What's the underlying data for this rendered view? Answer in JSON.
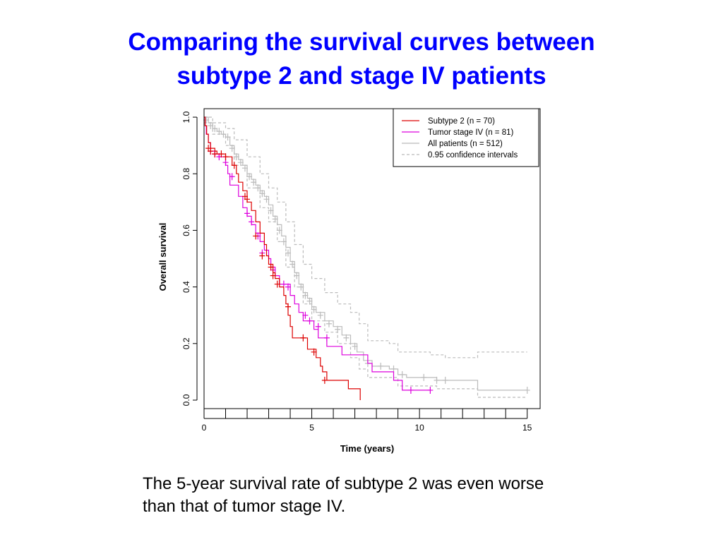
{
  "slide": {
    "title_lines": [
      "Comparing the survival curves between",
      "subtype 2 and stage IV patients"
    ],
    "caption_lines": [
      "The 5-year survival rate of subtype 2 was even worse",
      "than that of tumor stage IV."
    ]
  },
  "chart_data": {
    "type": "line",
    "subtype": "kaplan-meier step",
    "xlabel": "Time (years)",
    "ylabel": "Overall survival",
    "xlim": [
      0,
      15.6
    ],
    "ylim": [
      -0.03,
      1.03
    ],
    "x_ticks": [
      0,
      5,
      10,
      15
    ],
    "x_minor_ticks": [
      1,
      2,
      3,
      4,
      6,
      7,
      8,
      9,
      11,
      12,
      13,
      14
    ],
    "y_ticks": [
      0.0,
      0.2,
      0.4,
      0.6,
      0.8,
      1.0
    ],
    "y_tick_labels": [
      "0.0",
      "0.2",
      "0.4",
      "0.6",
      "0.8",
      "1.0"
    ],
    "grid": false,
    "legend_position": "top-right",
    "series": [
      {
        "name": "Subtype 2 (n = 70)",
        "color": "#dd0000",
        "step": [
          [
            0,
            1.0
          ],
          [
            0.05,
            0.97
          ],
          [
            0.12,
            0.94
          ],
          [
            0.2,
            0.91
          ],
          [
            0.3,
            0.89
          ],
          [
            0.5,
            0.88
          ],
          [
            0.6,
            0.87
          ],
          [
            1.0,
            0.86
          ],
          [
            1.3,
            0.83
          ],
          [
            1.5,
            0.8
          ],
          [
            1.6,
            0.77
          ],
          [
            1.8,
            0.74
          ],
          [
            2.0,
            0.7
          ],
          [
            2.2,
            0.67
          ],
          [
            2.4,
            0.63
          ],
          [
            2.6,
            0.59
          ],
          [
            2.8,
            0.55
          ],
          [
            2.9,
            0.51
          ],
          [
            3.0,
            0.48
          ],
          [
            3.2,
            0.45
          ],
          [
            3.3,
            0.43
          ],
          [
            3.5,
            0.4
          ],
          [
            3.7,
            0.37
          ],
          [
            3.8,
            0.34
          ],
          [
            3.9,
            0.3
          ],
          [
            4.0,
            0.26
          ],
          [
            4.1,
            0.22
          ],
          [
            4.8,
            0.18
          ],
          [
            5.2,
            0.15
          ],
          [
            5.4,
            0.12
          ],
          [
            5.5,
            0.1
          ],
          [
            5.7,
            0.07
          ],
          [
            6.7,
            0.04
          ],
          [
            7.25,
            0.0
          ]
        ],
        "censored": [
          [
            0.2,
            0.89
          ],
          [
            0.3,
            0.88
          ],
          [
            0.5,
            0.87
          ],
          [
            0.8,
            0.87
          ],
          [
            1.0,
            0.86
          ],
          [
            1.4,
            0.83
          ],
          [
            1.9,
            0.72
          ],
          [
            2.0,
            0.71
          ],
          [
            2.4,
            0.58
          ],
          [
            2.7,
            0.51
          ],
          [
            3.1,
            0.47
          ],
          [
            3.2,
            0.44
          ],
          [
            3.4,
            0.41
          ],
          [
            3.9,
            0.33
          ],
          [
            4.6,
            0.22
          ],
          [
            5.1,
            0.17
          ],
          [
            5.6,
            0.07
          ]
        ]
      },
      {
        "name": "Tumor stage IV (n = 81)",
        "color": "#dd00dd",
        "step": [
          [
            0,
            1.0
          ],
          [
            0.05,
            0.97
          ],
          [
            0.1,
            0.94
          ],
          [
            0.2,
            0.91
          ],
          [
            0.3,
            0.88
          ],
          [
            0.5,
            0.87
          ],
          [
            0.7,
            0.86
          ],
          [
            1.0,
            0.83
          ],
          [
            1.1,
            0.8
          ],
          [
            1.2,
            0.76
          ],
          [
            1.6,
            0.72
          ],
          [
            1.8,
            0.68
          ],
          [
            2.0,
            0.65
          ],
          [
            2.2,
            0.62
          ],
          [
            2.4,
            0.59
          ],
          [
            2.6,
            0.56
          ],
          [
            2.8,
            0.53
          ],
          [
            3.0,
            0.5
          ],
          [
            3.1,
            0.47
          ],
          [
            3.3,
            0.44
          ],
          [
            3.5,
            0.41
          ],
          [
            4.0,
            0.37
          ],
          [
            4.2,
            0.34
          ],
          [
            4.4,
            0.31
          ],
          [
            4.6,
            0.28
          ],
          [
            5.1,
            0.25
          ],
          [
            5.3,
            0.22
          ],
          [
            5.7,
            0.19
          ],
          [
            6.4,
            0.16
          ],
          [
            7.6,
            0.13
          ],
          [
            7.8,
            0.1
          ],
          [
            8.8,
            0.07
          ],
          [
            9.2,
            0.035
          ],
          [
            10.5,
            0.035
          ]
        ],
        "censored": [
          [
            0.3,
            0.88
          ],
          [
            0.5,
            0.87
          ],
          [
            0.7,
            0.86
          ],
          [
            1.0,
            0.84
          ],
          [
            1.3,
            0.79
          ],
          [
            2.0,
            0.66
          ],
          [
            2.2,
            0.63
          ],
          [
            2.5,
            0.58
          ],
          [
            2.7,
            0.52
          ],
          [
            3.2,
            0.46
          ],
          [
            3.7,
            0.41
          ],
          [
            3.9,
            0.4
          ],
          [
            4.7,
            0.3
          ],
          [
            4.9,
            0.28
          ],
          [
            5.3,
            0.26
          ],
          [
            5.7,
            0.22
          ],
          [
            9.6,
            0.035
          ],
          [
            10.5,
            0.035
          ]
        ]
      },
      {
        "name": "All patients (n = 512)",
        "color": "#bbbbbb",
        "step": [
          [
            0,
            1.0
          ],
          [
            0.2,
            0.98
          ],
          [
            0.4,
            0.96
          ],
          [
            0.6,
            0.95
          ],
          [
            0.8,
            0.94
          ],
          [
            1.0,
            0.93
          ],
          [
            1.2,
            0.9
          ],
          [
            1.4,
            0.87
          ],
          [
            1.6,
            0.85
          ],
          [
            1.8,
            0.83
          ],
          [
            2.0,
            0.8
          ],
          [
            2.2,
            0.78
          ],
          [
            2.4,
            0.76
          ],
          [
            2.6,
            0.74
          ],
          [
            2.8,
            0.72
          ],
          [
            3.0,
            0.69
          ],
          [
            3.2,
            0.65
          ],
          [
            3.4,
            0.62
          ],
          [
            3.6,
            0.58
          ],
          [
            3.8,
            0.54
          ],
          [
            4.0,
            0.49
          ],
          [
            4.2,
            0.45
          ],
          [
            4.4,
            0.41
          ],
          [
            4.6,
            0.38
          ],
          [
            4.8,
            0.36
          ],
          [
            5.0,
            0.33
          ],
          [
            5.2,
            0.31
          ],
          [
            5.6,
            0.28
          ],
          [
            6.0,
            0.26
          ],
          [
            6.4,
            0.23
          ],
          [
            6.8,
            0.2
          ],
          [
            7.1,
            0.17
          ],
          [
            7.4,
            0.14
          ],
          [
            7.8,
            0.12
          ],
          [
            8.6,
            0.11
          ],
          [
            9.0,
            0.09
          ],
          [
            9.4,
            0.08
          ],
          [
            10.8,
            0.07
          ],
          [
            12.7,
            0.035
          ],
          [
            15.0,
            0.035
          ]
        ],
        "censored": [
          [
            0.1,
            0.99
          ],
          [
            0.3,
            0.97
          ],
          [
            0.5,
            0.96
          ],
          [
            0.7,
            0.95
          ],
          [
            0.9,
            0.94
          ],
          [
            1.1,
            0.93
          ],
          [
            1.3,
            0.89
          ],
          [
            1.5,
            0.86
          ],
          [
            1.7,
            0.84
          ],
          [
            1.9,
            0.82
          ],
          [
            2.1,
            0.79
          ],
          [
            2.3,
            0.77
          ],
          [
            2.5,
            0.75
          ],
          [
            2.7,
            0.73
          ],
          [
            2.9,
            0.71
          ],
          [
            3.1,
            0.67
          ],
          [
            3.3,
            0.64
          ],
          [
            3.5,
            0.6
          ],
          [
            3.7,
            0.56
          ],
          [
            3.9,
            0.52
          ],
          [
            4.1,
            0.48
          ],
          [
            4.3,
            0.44
          ],
          [
            4.5,
            0.4
          ],
          [
            4.7,
            0.37
          ],
          [
            4.9,
            0.35
          ],
          [
            5.1,
            0.32
          ],
          [
            5.4,
            0.3
          ],
          [
            5.8,
            0.27
          ],
          [
            6.2,
            0.25
          ],
          [
            6.6,
            0.22
          ],
          [
            7.0,
            0.19
          ],
          [
            7.6,
            0.13
          ],
          [
            8.2,
            0.12
          ],
          [
            8.8,
            0.11
          ],
          [
            9.2,
            0.09
          ],
          [
            10.2,
            0.08
          ],
          [
            10.8,
            0.07
          ],
          [
            11.2,
            0.07
          ],
          [
            15.0,
            0.035
          ]
        ]
      }
    ],
    "confidence_intervals": {
      "name": "0.95 confidence intervals",
      "color": "#bbbbbb",
      "upper": [
        [
          0,
          1.0
        ],
        [
          0.4,
          0.98
        ],
        [
          1.0,
          0.96
        ],
        [
          1.4,
          0.92
        ],
        [
          2.0,
          0.86
        ],
        [
          2.6,
          0.8
        ],
        [
          3.0,
          0.75
        ],
        [
          3.4,
          0.7
        ],
        [
          3.8,
          0.63
        ],
        [
          4.2,
          0.55
        ],
        [
          4.6,
          0.48
        ],
        [
          5.0,
          0.43
        ],
        [
          5.6,
          0.38
        ],
        [
          6.2,
          0.34
        ],
        [
          6.8,
          0.31
        ],
        [
          7.2,
          0.27
        ],
        [
          7.6,
          0.21
        ],
        [
          8.6,
          0.2
        ],
        [
          9.0,
          0.17
        ],
        [
          10.5,
          0.16
        ],
        [
          11.2,
          0.15
        ],
        [
          12.7,
          0.17
        ],
        [
          15.0,
          0.17
        ]
      ],
      "lower": [
        [
          0,
          0.98
        ],
        [
          0.4,
          0.94
        ],
        [
          1.0,
          0.9
        ],
        [
          1.4,
          0.83
        ],
        [
          2.0,
          0.75
        ],
        [
          2.6,
          0.68
        ],
        [
          3.0,
          0.63
        ],
        [
          3.4,
          0.56
        ],
        [
          3.8,
          0.47
        ],
        [
          4.2,
          0.4
        ],
        [
          4.6,
          0.34
        ],
        [
          5.0,
          0.28
        ],
        [
          5.6,
          0.24
        ],
        [
          6.2,
          0.2
        ],
        [
          6.8,
          0.15
        ],
        [
          7.2,
          0.11
        ],
        [
          7.6,
          0.08
        ],
        [
          9.0,
          0.05
        ],
        [
          10.8,
          0.04
        ],
        [
          12.7,
          0.01
        ],
        [
          15.0,
          0.01
        ]
      ]
    }
  }
}
